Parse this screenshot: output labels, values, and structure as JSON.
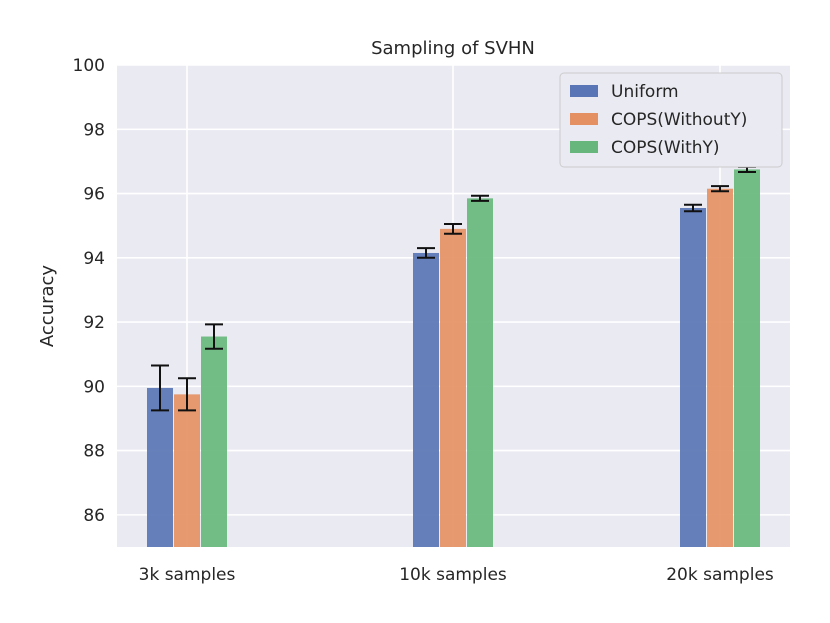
{
  "chart_data": {
    "type": "bar",
    "title": "Sampling  of SVHN",
    "xlabel": "",
    "ylabel": "Accuracy",
    "ylim": [
      85,
      100
    ],
    "yticks": [
      86,
      88,
      90,
      92,
      94,
      96,
      98,
      100
    ],
    "categories": [
      "3k samples",
      "10k samples",
      "20k samples"
    ],
    "grid": true,
    "legend_position": "top-right",
    "series": [
      {
        "name": "Uniform",
        "color": "#5975b5",
        "values": [
          89.95,
          94.15,
          95.55
        ],
        "errors": [
          0.7,
          0.15,
          0.1
        ]
      },
      {
        "name": "COPS(WithoutY)",
        "color": "#e59063",
        "values": [
          89.75,
          94.9,
          96.15
        ],
        "errors": [
          0.5,
          0.15,
          0.08
        ]
      },
      {
        "name": "COPS(WithY)",
        "color": "#67b77c",
        "values": [
          91.55,
          95.85,
          96.75
        ],
        "errors": [
          0.38,
          0.08,
          0.08
        ]
      }
    ]
  }
}
